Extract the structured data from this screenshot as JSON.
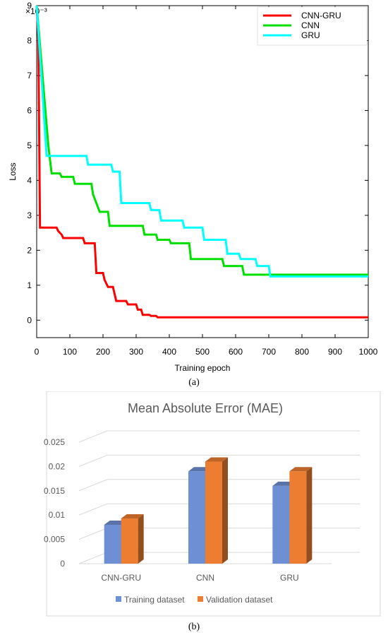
{
  "chart_data": [
    {
      "type": "line",
      "panel": "a",
      "caption": "(a)",
      "title": "",
      "xlabel": "Training epoch",
      "ylabel": "Loss",
      "y_multiplier": "×10⁻³",
      "xlim": [
        0,
        1000
      ],
      "ylim": [
        -0.5,
        9
      ],
      "x_ticks": [
        "0",
        "100",
        "200",
        "300",
        "400",
        "500",
        "600",
        "700",
        "800",
        "900",
        "1000"
      ],
      "y_ticks": [
        "0",
        "1",
        "2",
        "3",
        "4",
        "5",
        "6",
        "7",
        "8",
        "9"
      ],
      "legend_position": "top-right",
      "grid": false,
      "series": [
        {
          "name": "CNN-GRU",
          "color": "#ff0000",
          "points": [
            [
              0,
              9
            ],
            [
              5,
              8
            ],
            [
              10,
              2.65
            ],
            [
              60,
              2.65
            ],
            [
              65,
              2.55
            ],
            [
              75,
              2.45
            ],
            [
              80,
              2.35
            ],
            [
              140,
              2.35
            ],
            [
              145,
              2.2
            ],
            [
              175,
              2.2
            ],
            [
              180,
              1.35
            ],
            [
              200,
              1.35
            ],
            [
              205,
              1.15
            ],
            [
              215,
              0.95
            ],
            [
              230,
              0.95
            ],
            [
              240,
              0.55
            ],
            [
              270,
              0.55
            ],
            [
              275,
              0.45
            ],
            [
              300,
              0.45
            ],
            [
              305,
              0.3
            ],
            [
              315,
              0.3
            ],
            [
              320,
              0.15
            ],
            [
              340,
              0.15
            ],
            [
              345,
              0.12
            ],
            [
              360,
              0.12
            ],
            [
              365,
              0.08
            ],
            [
              1000,
              0.08
            ]
          ]
        },
        {
          "name": "CNN",
          "color": "#00e000",
          "points": [
            [
              0,
              9
            ],
            [
              35,
              5
            ],
            [
              45,
              4.2
            ],
            [
              70,
              4.2
            ],
            [
              75,
              4.1
            ],
            [
              110,
              4.1
            ],
            [
              115,
              3.9
            ],
            [
              165,
              3.9
            ],
            [
              170,
              3.6
            ],
            [
              190,
              3.1
            ],
            [
              215,
              3.1
            ],
            [
              220,
              2.7
            ],
            [
              320,
              2.7
            ],
            [
              325,
              2.45
            ],
            [
              360,
              2.45
            ],
            [
              365,
              2.3
            ],
            [
              400,
              2.3
            ],
            [
              405,
              2.2
            ],
            [
              460,
              2.2
            ],
            [
              465,
              1.75
            ],
            [
              560,
              1.75
            ],
            [
              565,
              1.55
            ],
            [
              620,
              1.55
            ],
            [
              625,
              1.3
            ],
            [
              1000,
              1.3
            ]
          ]
        },
        {
          "name": "GRU",
          "color": "#00ffff",
          "points": [
            [
              0,
              9
            ],
            [
              30,
              4.7
            ],
            [
              150,
              4.7
            ],
            [
              155,
              4.45
            ],
            [
              225,
              4.45
            ],
            [
              230,
              4.25
            ],
            [
              250,
              4.25
            ],
            [
              255,
              3.35
            ],
            [
              340,
              3.35
            ],
            [
              345,
              3.15
            ],
            [
              370,
              3.15
            ],
            [
              375,
              2.85
            ],
            [
              440,
              2.85
            ],
            [
              445,
              2.65
            ],
            [
              500,
              2.65
            ],
            [
              505,
              2.3
            ],
            [
              570,
              2.3
            ],
            [
              575,
              1.9
            ],
            [
              610,
              1.9
            ],
            [
              615,
              1.75
            ],
            [
              660,
              1.75
            ],
            [
              665,
              1.55
            ],
            [
              700,
              1.55
            ],
            [
              705,
              1.25
            ],
            [
              1000,
              1.25
            ]
          ]
        }
      ]
    },
    {
      "type": "bar",
      "panel": "b",
      "caption": "(b)",
      "title": "Mean Absolute Error (MAE)",
      "categories": [
        "CNN-GRU",
        "CNN",
        "GRU"
      ],
      "ylim": [
        0,
        0.025
      ],
      "y_ticks": [
        "0",
        "0.005",
        "0.01",
        "0.015",
        "0.02",
        "0.025"
      ],
      "legend_position": "bottom",
      "grid": true,
      "series": [
        {
          "name": "Training dataset",
          "color": "#6f8fd4",
          "values": [
            0.008,
            0.019,
            0.016
          ]
        },
        {
          "name": "Validation dataset",
          "color": "#ed7d31",
          "values": [
            0.0093,
            0.021,
            0.019
          ]
        }
      ]
    }
  ]
}
